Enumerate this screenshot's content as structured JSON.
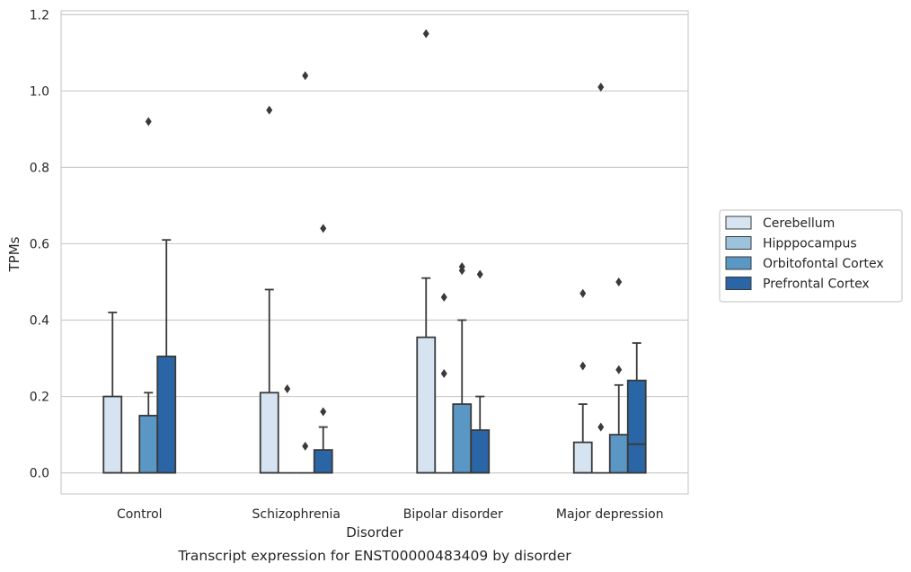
{
  "chart_data": {
    "type": "box",
    "title": "",
    "caption": "Transcript expression for ENST00000483409 by disorder",
    "xlabel": "Disorder",
    "ylabel": "TPMs",
    "ylim": [
      -0.055,
      1.21
    ],
    "yticks": [
      "0.0",
      "0.2",
      "0.4",
      "0.6",
      "0.8",
      "1.0",
      "1.2"
    ],
    "grid": "horizontal",
    "legend_placement": "right",
    "categories": [
      "Control",
      "Schizophrenia",
      "Bipolar disorder",
      "Major depression"
    ],
    "series": [
      {
        "name": "Cerebellum",
        "color": "#d6e4f2",
        "boxes": [
          {
            "q1": 0.0,
            "median": 0.0,
            "q3": 0.2,
            "whisker_low": 0.0,
            "whisker_high": 0.42,
            "outliers": []
          },
          {
            "q1": 0.0,
            "median": 0.0,
            "q3": 0.21,
            "whisker_low": 0.0,
            "whisker_high": 0.48,
            "outliers": [
              0.95
            ]
          },
          {
            "q1": 0.0,
            "median": 0.0,
            "q3": 0.355,
            "whisker_low": 0.0,
            "whisker_high": 0.51,
            "outliers": [
              1.15
            ]
          },
          {
            "q1": 0.0,
            "median": 0.0,
            "q3": 0.08,
            "whisker_low": 0.0,
            "whisker_high": 0.18,
            "outliers": [
              0.28,
              0.47
            ]
          }
        ]
      },
      {
        "name": "Hipppocampus",
        "color": "#9cc3dc",
        "boxes": [
          {
            "q1": 0.0,
            "median": 0.0,
            "q3": 0.0,
            "whisker_low": 0.0,
            "whisker_high": 0.0,
            "outliers": []
          },
          {
            "q1": 0.0,
            "median": 0.0,
            "q3": 0.0,
            "whisker_low": 0.0,
            "whisker_high": 0.0,
            "outliers": [
              0.22
            ]
          },
          {
            "q1": 0.0,
            "median": 0.0,
            "q3": 0.0,
            "whisker_low": 0.0,
            "whisker_high": 0.0,
            "outliers": [
              0.26,
              0.46
            ]
          },
          {
            "q1": 0.0,
            "median": 0.0,
            "q3": 0.0,
            "whisker_low": 0.0,
            "whisker_high": 0.0,
            "outliers": [
              0.12,
              1.01
            ]
          }
        ]
      },
      {
        "name": "Orbitofontal Cortex",
        "color": "#5b97c4",
        "boxes": [
          {
            "q1": 0.0,
            "median": 0.0,
            "q3": 0.15,
            "whisker_low": 0.0,
            "whisker_high": 0.21,
            "outliers": [
              0.92
            ]
          },
          {
            "q1": 0.0,
            "median": 0.0,
            "q3": 0.0,
            "whisker_low": 0.0,
            "whisker_high": 0.0,
            "outliers": [
              0.07,
              1.04
            ]
          },
          {
            "q1": 0.0,
            "median": 0.0,
            "q3": 0.18,
            "whisker_low": 0.0,
            "whisker_high": 0.4,
            "outliers": [
              0.53,
              0.54
            ]
          },
          {
            "q1": 0.0,
            "median": 0.0,
            "q3": 0.1,
            "whisker_low": 0.0,
            "whisker_high": 0.23,
            "outliers": [
              0.27,
              0.5
            ]
          }
        ]
      },
      {
        "name": "Prefrontal Cortex",
        "color": "#2a65a6",
        "boxes": [
          {
            "q1": 0.0,
            "median": 0.0,
            "q3": 0.305,
            "whisker_low": 0.0,
            "whisker_high": 0.61,
            "outliers": []
          },
          {
            "q1": 0.0,
            "median": 0.0,
            "q3": 0.06,
            "whisker_low": 0.0,
            "whisker_high": 0.12,
            "outliers": [
              0.16,
              0.64
            ]
          },
          {
            "q1": 0.0,
            "median": 0.0,
            "q3": 0.112,
            "whisker_low": 0.0,
            "whisker_high": 0.2,
            "outliers": [
              0.52
            ]
          },
          {
            "q1": 0.0,
            "median": 0.075,
            "q3": 0.242,
            "whisker_low": 0.0,
            "whisker_high": 0.34,
            "outliers": []
          }
        ]
      }
    ]
  }
}
